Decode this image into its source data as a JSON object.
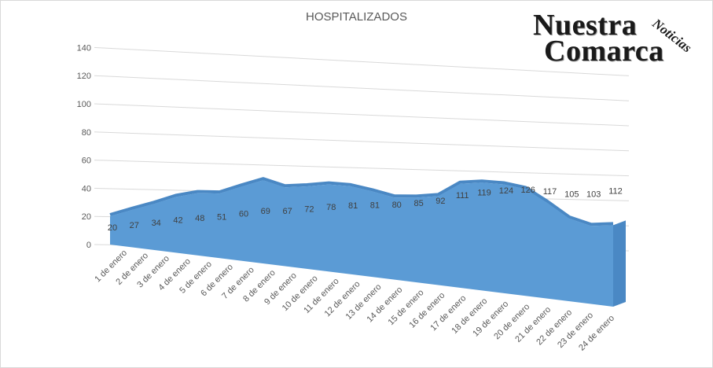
{
  "logo": {
    "line1": "Nuestra",
    "line2": "Comarca",
    "tag": "Noticias"
  },
  "colors": {
    "area": "#5b9bd5",
    "area_edge": "#4a88c4",
    "grid": "#d9d9d9",
    "text": "#595959"
  },
  "chart_data": {
    "type": "area",
    "title": "HOSPITALIZADOS",
    "categories": [
      "1 de enero",
      "2 de enero",
      "3 de enero",
      "4 de enero",
      "5 de enero",
      "6 de enero",
      "7 de enero",
      "8 de enero",
      "9 de enero",
      "10 de enero",
      "11 de enero",
      "12 de enero",
      "13 de enero",
      "14 de enero",
      "15 de enero",
      "16 de enero",
      "17 de enero",
      "18 de enero",
      "19 de enero",
      "20 de enero",
      "21 de enero",
      "22 de enero",
      "23 de enero",
      "24 de enero"
    ],
    "values": [
      20,
      27,
      34,
      42,
      48,
      51,
      60,
      69,
      67,
      72,
      78,
      81,
      81,
      80,
      85,
      92,
      111,
      119,
      124,
      126,
      117,
      105,
      103,
      112
    ],
    "yticks": [
      0,
      20,
      40,
      60,
      80,
      100,
      120,
      140
    ],
    "ylim": [
      0,
      140
    ],
    "view": "3D perspective",
    "data_labels": true,
    "grid": true,
    "legend": "none"
  }
}
